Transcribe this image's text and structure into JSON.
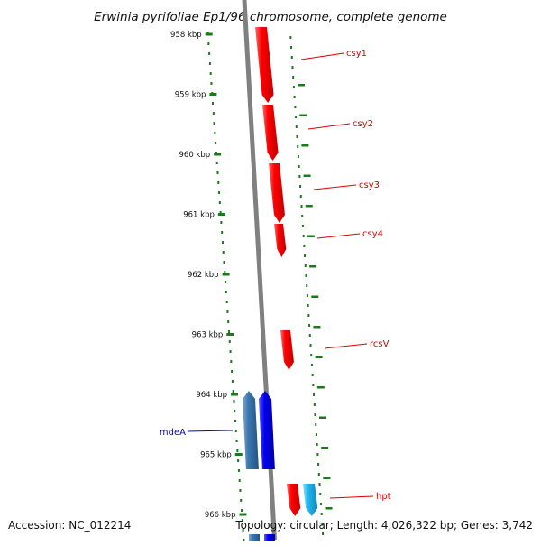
{
  "title": "Erwinia pyrifoliae Ep1/96 chromosome, complete genome",
  "footer": {
    "accession": "Accession: NC_012214",
    "stats": "Topology: circular; Length: 4,026,322 bp; Genes: 3,742"
  },
  "colors": {
    "background": "#ffffff",
    "backbone": "#808080",
    "tick": "#1a7a1a",
    "forward_gene": "#ff0000",
    "reverse_gene": "#0000ee",
    "reverse_gene_alt": "#3a78b0",
    "forward_gene_alt": "#22b8f0"
  },
  "kbp_ticks": [
    "958 kbp",
    "959 kbp",
    "960 kbp",
    "961 kbp",
    "962 kbp",
    "963 kbp",
    "964 kbp",
    "965 kbp",
    "966 kbp"
  ],
  "genes": [
    {
      "name": "csy1",
      "strand": "forward",
      "color": "#ff0000",
      "label_color": "#dd0000"
    },
    {
      "name": "csy2",
      "strand": "forward",
      "color": "#ff0000",
      "label_color": "#dd0000"
    },
    {
      "name": "csy3",
      "strand": "forward",
      "color": "#ff0000",
      "label_color": "#dd0000"
    },
    {
      "name": "csy4",
      "strand": "forward",
      "color": "#ff0000",
      "label_color": "#dd0000"
    },
    {
      "name": "rcsV",
      "strand": "forward",
      "color": "#ff0000",
      "label_color": "#dd0000"
    },
    {
      "name": "",
      "strand": "reverse",
      "color": "#3a78b0"
    },
    {
      "name": "mdeA",
      "strand": "reverse",
      "color": "#0000ee",
      "label_color": "#0000cc"
    },
    {
      "name": "hpt",
      "strand": "forward",
      "color": "#ff0000",
      "label_color": "#dd0000"
    },
    {
      "name": "",
      "strand": "forward",
      "color": "#22b8f0"
    }
  ]
}
